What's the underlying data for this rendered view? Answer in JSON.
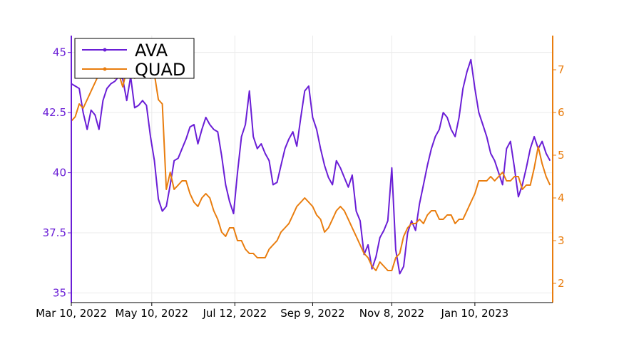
{
  "chart_data": {
    "type": "line",
    "title": "",
    "xlabel": "",
    "x_tick_labels": [
      "Mar 10, 2022",
      "May 10, 2022",
      "Jul 12, 2022",
      "Sep 9, 2022",
      "Nov 8, 2022",
      "Jan 10, 2023"
    ],
    "x_range": [
      "2022-03-10",
      "2023-03-10"
    ],
    "grid": true,
    "legend": "top-left",
    "axes": {
      "left": {
        "series": "AVA",
        "range": [
          34.6,
          45.7
        ],
        "ticks": [
          "35",
          "37.5",
          "40",
          "42.5",
          "45"
        ],
        "color": "#6a1ed6"
      },
      "right": {
        "series": "QUAD",
        "range": [
          1.55,
          7.8
        ],
        "ticks": [
          "2",
          "3",
          "4",
          "5",
          "6",
          "7"
        ],
        "color": "#e97d0e"
      }
    },
    "series": [
      {
        "name": "AVA",
        "color": "#6a1ed6",
        "axis": "left",
        "points": [
          [
            "2022-03-10",
            43.7
          ],
          [
            "2022-03-13",
            43.6
          ],
          [
            "2022-03-16",
            43.5
          ],
          [
            "2022-03-19",
            42.5
          ],
          [
            "2022-03-22",
            41.8
          ],
          [
            "2022-03-25",
            42.6
          ],
          [
            "2022-03-28",
            42.4
          ],
          [
            "2022-03-31",
            41.8
          ],
          [
            "2022-04-03",
            43.0
          ],
          [
            "2022-04-06",
            43.5
          ],
          [
            "2022-04-09",
            43.7
          ],
          [
            "2022-04-12",
            43.8
          ],
          [
            "2022-04-15",
            44.0
          ],
          [
            "2022-04-18",
            43.9
          ],
          [
            "2022-04-21",
            43.0
          ],
          [
            "2022-04-24",
            44.0
          ],
          [
            "2022-04-27",
            42.7
          ],
          [
            "2022-04-30",
            42.8
          ],
          [
            "2022-05-03",
            43.0
          ],
          [
            "2022-05-06",
            42.8
          ],
          [
            "2022-05-09",
            41.5
          ],
          [
            "2022-05-12",
            40.5
          ],
          [
            "2022-05-15",
            38.9
          ],
          [
            "2022-05-18",
            38.4
          ],
          [
            "2022-05-21",
            38.6
          ],
          [
            "2022-05-24",
            39.5
          ],
          [
            "2022-05-27",
            40.5
          ],
          [
            "2022-05-30",
            40.6
          ],
          [
            "2022-06-02",
            41.0
          ],
          [
            "2022-06-05",
            41.4
          ],
          [
            "2022-06-08",
            41.9
          ],
          [
            "2022-06-11",
            42.0
          ],
          [
            "2022-06-14",
            41.2
          ],
          [
            "2022-06-17",
            41.8
          ],
          [
            "2022-06-20",
            42.3
          ],
          [
            "2022-06-23",
            42.0
          ],
          [
            "2022-06-26",
            41.8
          ],
          [
            "2022-06-29",
            41.7
          ],
          [
            "2022-07-02",
            40.7
          ],
          [
            "2022-07-05",
            39.5
          ],
          [
            "2022-07-08",
            38.8
          ],
          [
            "2022-07-11",
            38.3
          ],
          [
            "2022-07-14",
            40.0
          ],
          [
            "2022-07-17",
            41.5
          ],
          [
            "2022-07-20",
            42.0
          ],
          [
            "2022-07-23",
            43.4
          ],
          [
            "2022-07-26",
            41.5
          ],
          [
            "2022-07-29",
            41.0
          ],
          [
            "2022-08-01",
            41.2
          ],
          [
            "2022-08-04",
            40.8
          ],
          [
            "2022-08-07",
            40.5
          ],
          [
            "2022-08-10",
            39.5
          ],
          [
            "2022-08-13",
            39.6
          ],
          [
            "2022-08-16",
            40.3
          ],
          [
            "2022-08-19",
            41.0
          ],
          [
            "2022-08-22",
            41.4
          ],
          [
            "2022-08-25",
            41.7
          ],
          [
            "2022-08-28",
            41.1
          ],
          [
            "2022-08-31",
            42.3
          ],
          [
            "2022-09-03",
            43.4
          ],
          [
            "2022-09-06",
            43.6
          ],
          [
            "2022-09-09",
            42.3
          ],
          [
            "2022-09-12",
            41.8
          ],
          [
            "2022-09-15",
            41.0
          ],
          [
            "2022-09-18",
            40.3
          ],
          [
            "2022-09-21",
            39.8
          ],
          [
            "2022-09-24",
            39.5
          ],
          [
            "2022-09-27",
            40.5
          ],
          [
            "2022-09-30",
            40.2
          ],
          [
            "2022-10-03",
            39.8
          ],
          [
            "2022-10-06",
            39.4
          ],
          [
            "2022-10-09",
            39.9
          ],
          [
            "2022-10-12",
            38.4
          ],
          [
            "2022-10-15",
            38.0
          ],
          [
            "2022-10-18",
            36.6
          ],
          [
            "2022-10-21",
            37.0
          ],
          [
            "2022-10-24",
            36.0
          ],
          [
            "2022-10-27",
            36.5
          ],
          [
            "2022-10-30",
            37.3
          ],
          [
            "2022-11-02",
            37.6
          ],
          [
            "2022-11-05",
            38.0
          ],
          [
            "2022-11-08",
            40.2
          ],
          [
            "2022-11-11",
            36.8
          ],
          [
            "2022-11-14",
            35.8
          ],
          [
            "2022-11-17",
            36.1
          ],
          [
            "2022-11-20",
            37.5
          ],
          [
            "2022-11-23",
            38.0
          ],
          [
            "2022-11-26",
            37.6
          ],
          [
            "2022-11-29",
            38.7
          ],
          [
            "2022-12-02",
            39.5
          ],
          [
            "2022-12-05",
            40.3
          ],
          [
            "2022-12-08",
            41.0
          ],
          [
            "2022-12-11",
            41.5
          ],
          [
            "2022-12-14",
            41.8
          ],
          [
            "2022-12-17",
            42.5
          ],
          [
            "2022-12-20",
            42.3
          ],
          [
            "2022-12-23",
            41.8
          ],
          [
            "2022-12-26",
            41.5
          ],
          [
            "2022-12-29",
            42.3
          ],
          [
            "2023-01-01",
            43.5
          ],
          [
            "2023-01-04",
            44.2
          ],
          [
            "2023-01-07",
            44.7
          ],
          [
            "2023-01-10",
            43.5
          ],
          [
            "2023-01-13",
            42.5
          ],
          [
            "2023-01-16",
            42.0
          ],
          [
            "2023-01-19",
            41.5
          ],
          [
            "2023-01-22",
            40.8
          ],
          [
            "2023-01-25",
            40.5
          ],
          [
            "2023-01-28",
            40.0
          ],
          [
            "2023-01-31",
            39.5
          ],
          [
            "2023-02-03",
            41.0
          ],
          [
            "2023-02-06",
            41.3
          ],
          [
            "2023-02-09",
            40.2
          ],
          [
            "2023-02-12",
            39.0
          ],
          [
            "2023-02-15",
            39.5
          ],
          [
            "2023-02-18",
            40.2
          ],
          [
            "2023-02-21",
            41.0
          ],
          [
            "2023-02-24",
            41.5
          ],
          [
            "2023-02-27",
            41.0
          ],
          [
            "2023-03-02",
            41.3
          ],
          [
            "2023-03-05",
            40.8
          ],
          [
            "2023-03-08",
            40.5
          ]
        ]
      },
      {
        "name": "QUAD",
        "color": "#e97d0e",
        "axis": "right",
        "points": [
          [
            "2022-03-10",
            5.8
          ],
          [
            "2022-03-13",
            5.9
          ],
          [
            "2022-03-16",
            6.2
          ],
          [
            "2022-03-19",
            6.1
          ],
          [
            "2022-03-22",
            6.3
          ],
          [
            "2022-03-25",
            6.5
          ],
          [
            "2022-03-28",
            6.7
          ],
          [
            "2022-03-31",
            6.9
          ],
          [
            "2022-04-03",
            7.0
          ],
          [
            "2022-04-06",
            6.9
          ],
          [
            "2022-04-09",
            7.0
          ],
          [
            "2022-04-12",
            6.8
          ],
          [
            "2022-04-15",
            6.9
          ],
          [
            "2022-04-18",
            6.6
          ],
          [
            "2022-04-21",
            7.0
          ],
          [
            "2022-04-24",
            6.9
          ],
          [
            "2022-04-27",
            6.8
          ],
          [
            "2022-04-30",
            7.0
          ],
          [
            "2022-05-03",
            6.9
          ],
          [
            "2022-05-06",
            7.0
          ],
          [
            "2022-05-09",
            6.8
          ],
          [
            "2022-05-12",
            6.9
          ],
          [
            "2022-05-15",
            6.3
          ],
          [
            "2022-05-18",
            6.2
          ],
          [
            "2022-05-21",
            4.2
          ],
          [
            "2022-05-24",
            4.6
          ],
          [
            "2022-05-27",
            4.2
          ],
          [
            "2022-05-30",
            4.3
          ],
          [
            "2022-06-02",
            4.4
          ],
          [
            "2022-06-05",
            4.4
          ],
          [
            "2022-06-08",
            4.1
          ],
          [
            "2022-06-11",
            3.9
          ],
          [
            "2022-06-14",
            3.8
          ],
          [
            "2022-06-17",
            4.0
          ],
          [
            "2022-06-20",
            4.1
          ],
          [
            "2022-06-23",
            4.0
          ],
          [
            "2022-06-26",
            3.7
          ],
          [
            "2022-06-29",
            3.5
          ],
          [
            "2022-07-02",
            3.2
          ],
          [
            "2022-07-05",
            3.1
          ],
          [
            "2022-07-08",
            3.3
          ],
          [
            "2022-07-11",
            3.3
          ],
          [
            "2022-07-14",
            3.0
          ],
          [
            "2022-07-17",
            3.0
          ],
          [
            "2022-07-20",
            2.8
          ],
          [
            "2022-07-23",
            2.7
          ],
          [
            "2022-07-26",
            2.7
          ],
          [
            "2022-07-29",
            2.6
          ],
          [
            "2022-08-01",
            2.6
          ],
          [
            "2022-08-04",
            2.6
          ],
          [
            "2022-08-07",
            2.8
          ],
          [
            "2022-08-10",
            2.9
          ],
          [
            "2022-08-13",
            3.0
          ],
          [
            "2022-08-16",
            3.2
          ],
          [
            "2022-08-19",
            3.3
          ],
          [
            "2022-08-22",
            3.4
          ],
          [
            "2022-08-25",
            3.6
          ],
          [
            "2022-08-28",
            3.8
          ],
          [
            "2022-08-31",
            3.9
          ],
          [
            "2022-09-03",
            4.0
          ],
          [
            "2022-09-06",
            3.9
          ],
          [
            "2022-09-09",
            3.8
          ],
          [
            "2022-09-12",
            3.6
          ],
          [
            "2022-09-15",
            3.5
          ],
          [
            "2022-09-18",
            3.2
          ],
          [
            "2022-09-21",
            3.3
          ],
          [
            "2022-09-24",
            3.5
          ],
          [
            "2022-09-27",
            3.7
          ],
          [
            "2022-09-30",
            3.8
          ],
          [
            "2022-10-03",
            3.7
          ],
          [
            "2022-10-06",
            3.5
          ],
          [
            "2022-10-09",
            3.3
          ],
          [
            "2022-10-12",
            3.1
          ],
          [
            "2022-10-15",
            2.9
          ],
          [
            "2022-10-18",
            2.7
          ],
          [
            "2022-10-21",
            2.6
          ],
          [
            "2022-10-24",
            2.4
          ],
          [
            "2022-10-27",
            2.3
          ],
          [
            "2022-10-30",
            2.5
          ],
          [
            "2022-11-02",
            2.4
          ],
          [
            "2022-11-05",
            2.3
          ],
          [
            "2022-11-08",
            2.3
          ],
          [
            "2022-11-11",
            2.6
          ],
          [
            "2022-11-14",
            2.7
          ],
          [
            "2022-11-17",
            3.1
          ],
          [
            "2022-11-20",
            3.3
          ],
          [
            "2022-11-23",
            3.4
          ],
          [
            "2022-11-26",
            3.4
          ],
          [
            "2022-11-29",
            3.5
          ],
          [
            "2022-12-02",
            3.4
          ],
          [
            "2022-12-05",
            3.6
          ],
          [
            "2022-12-08",
            3.7
          ],
          [
            "2022-12-11",
            3.7
          ],
          [
            "2022-12-14",
            3.5
          ],
          [
            "2022-12-17",
            3.5
          ],
          [
            "2022-12-20",
            3.6
          ],
          [
            "2022-12-23",
            3.6
          ],
          [
            "2022-12-26",
            3.4
          ],
          [
            "2022-12-29",
            3.5
          ],
          [
            "2023-01-01",
            3.5
          ],
          [
            "2023-01-04",
            3.7
          ],
          [
            "2023-01-07",
            3.9
          ],
          [
            "2023-01-10",
            4.1
          ],
          [
            "2023-01-13",
            4.4
          ],
          [
            "2023-01-16",
            4.4
          ],
          [
            "2023-01-19",
            4.4
          ],
          [
            "2023-01-22",
            4.5
          ],
          [
            "2023-01-25",
            4.4
          ],
          [
            "2023-01-28",
            4.5
          ],
          [
            "2023-01-31",
            4.6
          ],
          [
            "2023-02-03",
            4.4
          ],
          [
            "2023-02-06",
            4.4
          ],
          [
            "2023-02-09",
            4.5
          ],
          [
            "2023-02-12",
            4.5
          ],
          [
            "2023-02-15",
            4.2
          ],
          [
            "2023-02-18",
            4.3
          ],
          [
            "2023-02-21",
            4.3
          ],
          [
            "2023-02-24",
            4.7
          ],
          [
            "2023-02-27",
            5.2
          ],
          [
            "2023-03-02",
            4.8
          ],
          [
            "2023-03-05",
            4.5
          ],
          [
            "2023-03-08",
            4.3
          ]
        ]
      }
    ]
  }
}
